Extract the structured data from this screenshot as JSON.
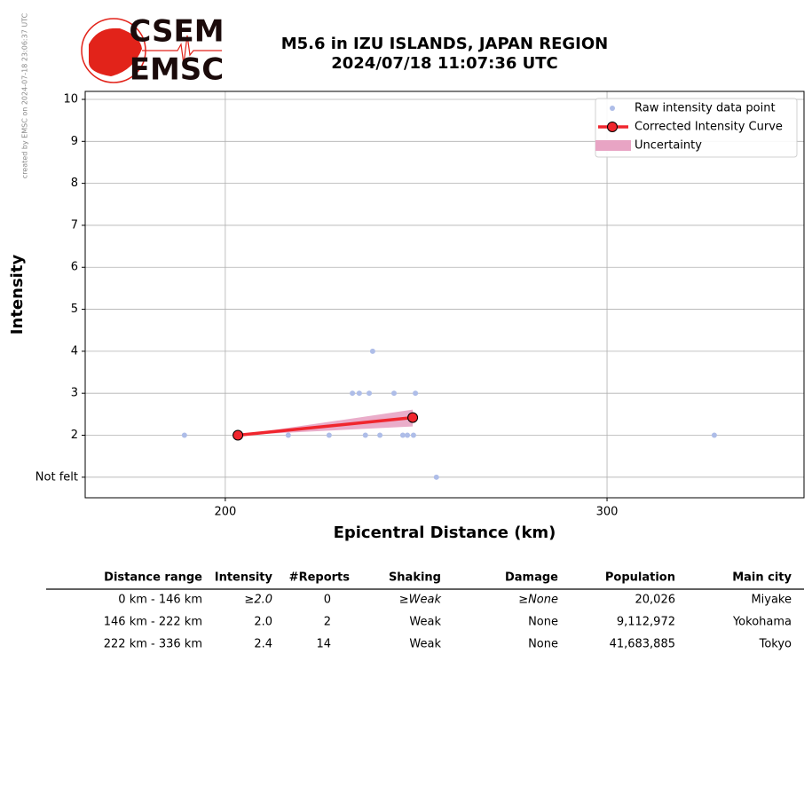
{
  "credit": "created by EMSC on 2024-07-18 23:06:37 UTC",
  "logo": {
    "top": "CSEM",
    "bottom": "EMSC"
  },
  "chart_data": {
    "type": "scatter",
    "title": "M5.6 in IZU ISLANDS, JAPAN REGION",
    "subtitle": "2024/07/18 11:07:36 UTC",
    "x_label": "Epicentral Distance (km)",
    "y_label": "Intensity",
    "xlim": [
      163.3,
      351.6
    ],
    "xticks": [
      200,
      300
    ],
    "ylim": [
      0.51,
      10.19
    ],
    "yticks": [
      {
        "value": 1,
        "label": "Not felt"
      },
      2,
      3,
      4,
      5,
      6,
      7,
      8,
      9,
      10
    ],
    "grid": true,
    "legend": "upper right",
    "series": [
      {
        "name": "Raw intensity data point",
        "type": "scatter",
        "color": "#aebde8",
        "x": [
          189.3,
          216.5,
          227.2,
          233.3,
          235.1,
          237.7,
          238.6,
          236.7,
          240.5,
          244.2,
          246.5,
          247.7,
          249.3,
          249.8,
          255.3,
          328.1
        ],
        "values": [
          2,
          2,
          2,
          3,
          3,
          3,
          4,
          2,
          2,
          3,
          2,
          2,
          2,
          3,
          1,
          2
        ]
      },
      {
        "name": "Corrected Intensity Curve",
        "type": "line",
        "color": "#f0262e",
        "x": [
          203.3,
          249.1
        ],
        "values": [
          2.0,
          2.42
        ]
      },
      {
        "name": "Uncertainty",
        "type": "band",
        "color": "#e8a4c4",
        "x": [
          203.3,
          249.1
        ],
        "lower": [
          2.0,
          2.21
        ],
        "upper": [
          2.0,
          2.61
        ]
      }
    ]
  },
  "table": {
    "headers": [
      "Distance range",
      "Intensity",
      "#Reports",
      "Shaking",
      "Damage",
      "Population",
      "Main city"
    ],
    "rows": [
      [
        "0 km -  146 km",
        "≥2.0",
        "0",
        "≥Weak",
        "≥None",
        "20,026",
        "Miyake"
      ],
      [
        "146 km -  222 km",
        "2.0",
        "2",
        "Weak",
        "None",
        "9,112,972",
        "Yokohama"
      ],
      [
        "222 km -  336 km",
        "2.4",
        "14",
        "Weak",
        "None",
        "41,683,885",
        "Tokyo"
      ]
    ]
  }
}
